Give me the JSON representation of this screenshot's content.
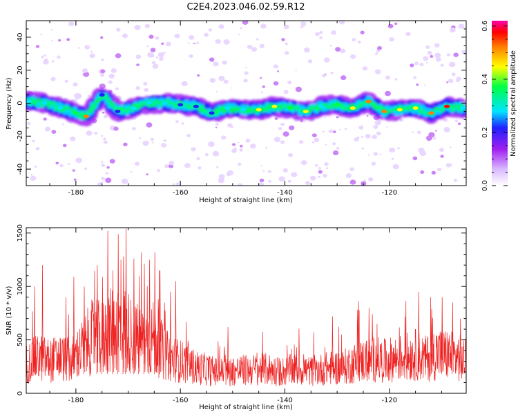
{
  "title": "C2E4.2023.046.02.59.R12",
  "colors": {
    "snr_line": "#ee2222",
    "colormap": [
      "#ffffff",
      "#d9b8ff",
      "#a020f0",
      "#2020ff",
      "#00e5ff",
      "#00ff44",
      "#ffff00",
      "#ff8000",
      "#ff0000",
      "#ff00aa"
    ]
  },
  "chart_data": [
    {
      "type": "heatmap",
      "description_tag": "spectrogram",
      "xlabel": "Height of straight line (km)",
      "ylabel": "Frequency (Hz)",
      "xlim": [
        -189.5,
        -105.3
      ],
      "ylim": [
        -50,
        50
      ],
      "xticks": [
        -180,
        -160,
        -140,
        -120
      ],
      "yticks": [
        -40,
        -20,
        0,
        20,
        40
      ],
      "xtick_labels": [
        "-180",
        "-160",
        "-140",
        "-120"
      ],
      "ytick_labels": [
        "-40",
        "-20",
        "0",
        "20",
        "40"
      ],
      "colorbar": {
        "label": "Normalized spectral amplitude",
        "range": [
          0.0,
          0.62
        ],
        "ticks": [
          0.0,
          0.2,
          0.4,
          0.6
        ],
        "tick_labels": [
          "0.0",
          "0.2",
          "0.4",
          "0.6"
        ]
      },
      "ridge": {
        "x": [
          -189,
          -186,
          -183,
          -180,
          -178,
          -175,
          -172,
          -169,
          -166,
          -163,
          -160,
          -157,
          -154,
          -151,
          -148,
          -145,
          -142,
          -139,
          -136,
          -133,
          -130,
          -127,
          -124,
          -121,
          -118,
          -115,
          -112,
          -109,
          -106
        ],
        "freq": [
          1,
          0,
          -3,
          -6,
          -8,
          5,
          -5,
          -3,
          0,
          0,
          -1,
          -2,
          -6,
          -3,
          -4,
          -4,
          -2,
          -3,
          -5,
          -2,
          -1,
          -3,
          1,
          -5,
          -4,
          -3,
          -6,
          -2,
          -3
        ],
        "amplitude": [
          0.25,
          0.28,
          0.3,
          0.36,
          0.45,
          0.2,
          0.22,
          0.26,
          0.28,
          0.3,
          0.24,
          0.22,
          0.2,
          0.28,
          0.3,
          0.38,
          0.42,
          0.34,
          0.44,
          0.3,
          0.32,
          0.4,
          0.46,
          0.48,
          0.44,
          0.4,
          0.5,
          0.56,
          0.3
        ]
      }
    },
    {
      "type": "line",
      "xlabel": "Height of straight line (km)",
      "ylabel": "SNR (10 * v/v)",
      "xlim": [
        -189.5,
        -105.3
      ],
      "ylim": [
        0,
        1550
      ],
      "xticks": [
        -180,
        -160,
        -140,
        -120
      ],
      "yticks": [
        0,
        500,
        1000,
        1500
      ],
      "xtick_labels": [
        "-180",
        "-160",
        "-140",
        "-120"
      ],
      "ytick_labels": [
        "0",
        "500",
        "1000",
        "1500"
      ],
      "series": [
        {
          "envelope_x": [
            -189.5,
            -187,
            -185,
            -183,
            -181,
            -179,
            -177,
            -175,
            -173,
            -171,
            -169,
            -167,
            -165,
            -163,
            -161,
            -159,
            -157,
            -155,
            -153,
            -151,
            -149,
            -147,
            -145,
            -143,
            -141,
            -139,
            -137,
            -135,
            -133,
            -131,
            -129,
            -127,
            -125,
            -123,
            -121,
            -119,
            -117,
            -115,
            -113,
            -111,
            -109,
            -107,
            -105.3
          ],
          "envelope_y": [
            350,
            420,
            380,
            420,
            380,
            500,
            650,
            650,
            750,
            800,
            650,
            600,
            650,
            450,
            400,
            350,
            300,
            280,
            250,
            250,
            270,
            270,
            280,
            280,
            250,
            270,
            280,
            260,
            280,
            300,
            300,
            350,
            380,
            400,
            380,
            400,
            420,
            450,
            400,
            470,
            450,
            420,
            380
          ],
          "peaks_x": [
            -188,
            -186.5,
            -182,
            -180.5,
            -178.5,
            -176,
            -175,
            -174,
            -173,
            -172,
            -171,
            -170.5,
            -169,
            -168,
            -167,
            -166,
            -165,
            -164,
            -162,
            -161,
            -151,
            -131,
            -126,
            -124,
            -114.5,
            -112,
            -110,
            -108,
            -106.5
          ],
          "peaks_y": [
            1000,
            1200,
            900,
            1090,
            1000,
            1200,
            1090,
            1520,
            1150,
            1490,
            1280,
            1540,
            1260,
            1100,
            1210,
            1250,
            1320,
            1150,
            950,
            1050,
            620,
            720,
            860,
            800,
            950,
            790,
            900,
            850,
            700
          ]
        }
      ]
    }
  ]
}
